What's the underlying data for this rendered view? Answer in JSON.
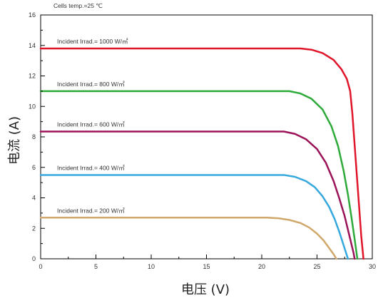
{
  "chart_data": {
    "type": "line",
    "title": "",
    "annotation": "Cells temp.=25 ℃",
    "xlabel": "电压 (V)",
    "ylabel": "电流 (A)",
    "xlim": [
      0,
      30
    ],
    "ylim": [
      0,
      16
    ],
    "x_major_ticks": [
      0,
      5,
      10,
      15,
      20,
      25,
      30
    ],
    "x_tick_labels": [
      "0",
      "5",
      "10",
      "15",
      "20",
      "25",
      "30"
    ],
    "y_major_ticks": [
      0,
      2,
      4,
      6,
      8,
      10,
      12,
      14,
      16
    ],
    "y_tick_labels": [
      "0",
      "2",
      "4",
      "6",
      "8",
      "10",
      "12",
      "14",
      "16"
    ],
    "grid": false,
    "series": [
      {
        "name": "Incident Irrad.= 1000 W/㎡",
        "color": "#e0152a",
        "points": [
          [
            0,
            13.8
          ],
          [
            23.5,
            13.8
          ],
          [
            24.5,
            13.72
          ],
          [
            25.5,
            13.5
          ],
          [
            26.5,
            13.05
          ],
          [
            27.2,
            12.45
          ],
          [
            27.7,
            11.8
          ],
          [
            28.0,
            11.0
          ],
          [
            28.2,
            9.5
          ],
          [
            28.4,
            7.5
          ],
          [
            28.6,
            5.5
          ],
          [
            28.8,
            3.5
          ],
          [
            29.0,
            1.5
          ],
          [
            29.2,
            0
          ]
        ]
      },
      {
        "name": "Incident Irrad.= 800 W/㎡",
        "color": "#2eaa3a",
        "points": [
          [
            0,
            11.0
          ],
          [
            22.5,
            11.0
          ],
          [
            23.5,
            10.85
          ],
          [
            24.5,
            10.5
          ],
          [
            25.5,
            9.8
          ],
          [
            26.3,
            8.7
          ],
          [
            26.9,
            7.4
          ],
          [
            27.4,
            5.8
          ],
          [
            27.8,
            4.2
          ],
          [
            28.1,
            2.8
          ],
          [
            28.4,
            1.3
          ],
          [
            28.65,
            0
          ]
        ]
      },
      {
        "name": "Incident Irrad.= 600 W/㎡",
        "color": "#9b1358",
        "points": [
          [
            0,
            8.35
          ],
          [
            22.0,
            8.35
          ],
          [
            23.0,
            8.2
          ],
          [
            24.0,
            7.85
          ],
          [
            25.0,
            7.2
          ],
          [
            25.8,
            6.3
          ],
          [
            26.5,
            5.1
          ],
          [
            27.0,
            4.0
          ],
          [
            27.5,
            2.8
          ],
          [
            27.9,
            1.6
          ],
          [
            28.3,
            0.4
          ],
          [
            28.4,
            0
          ]
        ]
      },
      {
        "name": "Incident Irrad.= 400 W/㎡",
        "color": "#35a8de",
        "points": [
          [
            0,
            5.5
          ],
          [
            22.0,
            5.5
          ],
          [
            23.0,
            5.38
          ],
          [
            24.0,
            5.1
          ],
          [
            24.8,
            4.7
          ],
          [
            25.5,
            4.1
          ],
          [
            26.1,
            3.4
          ],
          [
            26.6,
            2.6
          ],
          [
            27.0,
            1.8
          ],
          [
            27.4,
            0.9
          ],
          [
            27.8,
            0
          ]
        ]
      },
      {
        "name": "Incident Irrad.= 200 W/㎡",
        "color": "#d0a86c",
        "points": [
          [
            0,
            2.7
          ],
          [
            20.5,
            2.7
          ],
          [
            21.5,
            2.66
          ],
          [
            22.5,
            2.55
          ],
          [
            23.5,
            2.35
          ],
          [
            24.3,
            2.05
          ],
          [
            25.0,
            1.65
          ],
          [
            25.6,
            1.2
          ],
          [
            26.1,
            0.7
          ],
          [
            26.5,
            0.3
          ],
          [
            26.75,
            0
          ]
        ]
      }
    ]
  }
}
